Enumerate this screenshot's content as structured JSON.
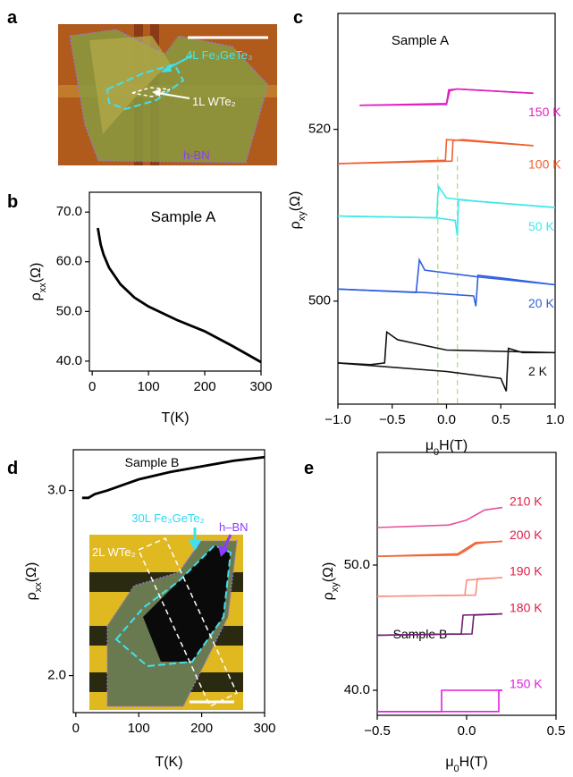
{
  "panel_a": {
    "label": "a",
    "texts": [
      "4L Fe₃GeTe₃",
      "1L WTe₂",
      "h-BN"
    ]
  },
  "chart_data": [
    {
      "panel": "b",
      "type": "line",
      "annotation": "Sample A",
      "xlabel": [
        "T(K)"
      ],
      "ylabel": [
        "ρ",
        "xx",
        "(Ω)"
      ],
      "xlim": [
        -5,
        300
      ],
      "xticks": [
        0,
        100,
        200,
        300
      ],
      "ylim": [
        38,
        74
      ],
      "yticks": [
        {
          "value": 40,
          "label": "40.0"
        },
        {
          "value": 50,
          "label": "50.0"
        },
        {
          "value": 60,
          "label": "60.0"
        },
        {
          "value": 70,
          "label": "70.0"
        }
      ],
      "series": [
        {
          "color": "#000000",
          "x": [
            10,
            15,
            20,
            30,
            50,
            75,
            100,
            150,
            200,
            250,
            300
          ],
          "values": [
            66.8,
            63.5,
            61.5,
            58.8,
            55.5,
            52.8,
            51.0,
            48.3,
            46.0,
            43.0,
            39.8
          ]
        }
      ]
    },
    {
      "panel": "c",
      "type": "line",
      "annotation": "Sample A",
      "xlabel": [
        "μ",
        "0",
        "H(T)"
      ],
      "ylabel": [
        "ρ",
        "xy",
        "(Ω)"
      ],
      "xlim": [
        -1,
        1
      ],
      "xticks": [
        {
          "value": -1,
          "label": "−1.0"
        },
        {
          "value": -0.5,
          "label": "−0.5"
        },
        {
          "value": 0,
          "label": "0.0"
        },
        0.5,
        {
          "value": 1,
          "label": "1.0"
        }
      ],
      "ylim": [
        488,
        533.5
      ],
      "yticks": [
        500,
        520
      ],
      "vlines": [
        -0.08,
        0.1
      ],
      "vline_color": "#b0e080",
      "series": [
        {
          "name": "150 K",
          "color": "#e020c0",
          "branches": [
            {
              "x": [
                -0.8,
                0.0,
                0.03,
                0.1,
                0.8
              ],
              "values": [
                522.8,
                522.9,
                524.5,
                524.7,
                524.2
              ]
            },
            {
              "x": [
                0.8,
                0.1,
                0.02,
                0.0,
                -0.8
              ],
              "values": [
                524.2,
                524.7,
                524.6,
                523.0,
                522.8
              ]
            }
          ]
        },
        {
          "name": "100 K",
          "color": "#f06030",
          "branches": [
            {
              "x": [
                -1.0,
                0.05,
                0.06,
                0.15,
                0.8
              ],
              "values": [
                516.0,
                516.3,
                518.7,
                518.8,
                518.1
              ]
            },
            {
              "x": [
                0.8,
                0.15,
                0.0,
                -0.01,
                -1.0
              ],
              "values": [
                518.1,
                518.7,
                518.8,
                516.4,
                516.0
              ]
            }
          ]
        },
        {
          "name": "50 K",
          "color": "#40e8e8",
          "branches": [
            {
              "x": [
                -1.0,
                -0.1,
                0.08,
                0.1,
                0.11,
                0.3,
                1.0
              ],
              "values": [
                509.9,
                509.7,
                509.4,
                507.6,
                511.8,
                511.6,
                510.9
              ]
            },
            {
              "x": [
                1.0,
                0.3,
                0.0,
                -0.07,
                -0.08,
                -0.09,
                -1.0
              ],
              "values": [
                510.9,
                511.6,
                512.0,
                513.3,
                512.4,
                509.7,
                509.9
              ]
            }
          ]
        },
        {
          "name": "20 K",
          "color": "#3060e0",
          "branches": [
            {
              "x": [
                -1.0,
                -0.2,
                0.25,
                0.27,
                0.29,
                0.5,
                1.0
              ],
              "values": [
                501.4,
                501.0,
                500.6,
                499.4,
                503.0,
                502.7,
                501.9
              ]
            },
            {
              "x": [
                1.0,
                0.3,
                -0.2,
                -0.25,
                -0.26,
                -0.28,
                -1.0
              ],
              "values": [
                501.9,
                502.8,
                503.6,
                504.8,
                503.5,
                501.0,
                501.4
              ]
            }
          ]
        },
        {
          "name": "2 K",
          "color": "#111111",
          "branches": [
            {
              "x": [
                -1.0,
                0.0,
                0.5,
                0.55,
                0.57,
                0.7,
                1.0
              ],
              "values": [
                492.8,
                491.8,
                491.0,
                489.5,
                494.5,
                494.0,
                494.0
              ]
            },
            {
              "x": [
                1.0,
                0.0,
                -0.45,
                -0.55,
                -0.57,
                -0.7,
                -1.0
              ],
              "values": [
                494.0,
                494.3,
                495.5,
                496.4,
                492.8,
                492.6,
                492.8
              ]
            }
          ]
        }
      ]
    },
    {
      "panel": "d",
      "type": "line",
      "annotation": "Sample B",
      "xlabel": [
        "T(K)"
      ],
      "ylabel": [
        "ρ",
        "xx",
        "(Ω)"
      ],
      "xlim": [
        -4,
        300
      ],
      "xticks": [
        0,
        100,
        200,
        300
      ],
      "ylim": [
        1.8,
        3.22
      ],
      "yticks": [
        {
          "value": 2,
          "label": "2.0"
        },
        {
          "value": 3,
          "label": "3.0"
        }
      ],
      "inset_labels": [
        "30L Fe₃GeTe₂",
        "h–BN",
        "2L WTe₂"
      ],
      "series": [
        {
          "color": "#000000",
          "x": [
            10,
            20,
            30,
            50,
            75,
            100,
            150,
            200,
            250,
            300
          ],
          "values": [
            2.96,
            2.96,
            2.98,
            3.0,
            3.03,
            3.06,
            3.1,
            3.13,
            3.16,
            3.18
          ]
        }
      ]
    },
    {
      "panel": "e",
      "type": "line",
      "annotation": "Sample B",
      "xlabel": [
        "μ",
        "0",
        "H(T)"
      ],
      "ylabel": [
        "ρ",
        "xy",
        "(Ω)"
      ],
      "xlim": [
        -0.5,
        0.5
      ],
      "xticks": [
        {
          "value": -0.5,
          "label": "−0.5"
        },
        {
          "value": 0,
          "label": "0.0"
        },
        0.5
      ],
      "ylim": [
        38,
        59
      ],
      "yticks": [
        {
          "value": 40,
          "label": "40.0"
        },
        {
          "value": 50,
          "label": "50.0"
        }
      ],
      "series": [
        {
          "name": "210 K",
          "color": "#e8509a",
          "label_color": "#e0204a",
          "branches": [
            {
              "x": [
                -0.5,
                -0.1,
                0.0,
                0.05,
                0.1,
                0.2
              ],
              "values": [
                53.0,
                53.2,
                53.6,
                54.0,
                54.4,
                54.6
              ]
            }
          ]
        },
        {
          "name": "200 K",
          "color": "#f06838",
          "label_color": "#e0204a",
          "branches": [
            {
              "x": [
                -0.5,
                -0.05,
                0.0,
                0.05,
                0.1,
                0.2
              ],
              "values": [
                50.7,
                50.8,
                51.2,
                51.7,
                51.8,
                51.9
              ]
            },
            {
              "x": [
                0.2,
                0.05,
                -0.05,
                -0.5
              ],
              "values": [
                51.9,
                51.8,
                50.9,
                50.7
              ]
            }
          ]
        },
        {
          "name": "190 K",
          "color": "#f89080",
          "label_color": "#e0204a",
          "branches": [
            {
              "x": [
                -0.5,
                0.05,
                0.06,
                0.2
              ],
              "values": [
                47.5,
                47.6,
                48.9,
                49.0
              ]
            },
            {
              "x": [
                0.2,
                0.0,
                -0.01,
                -0.5
              ],
              "values": [
                49.0,
                48.8,
                47.6,
                47.5
              ]
            }
          ]
        },
        {
          "name": "180 K",
          "color": "#702070",
          "label_color": "#e0204a",
          "branches": [
            {
              "x": [
                -0.5,
                0.03,
                0.04,
                0.2
              ],
              "values": [
                44.4,
                44.5,
                46.0,
                46.1
              ]
            },
            {
              "x": [
                0.2,
                -0.02,
                -0.03,
                -0.5
              ],
              "values": [
                46.1,
                46.0,
                44.5,
                44.4
              ]
            }
          ]
        },
        {
          "name": "150 K",
          "color": "#e020e0",
          "label_color": "#e020e0",
          "branches": [
            {
              "x": [
                -0.5,
                0.18,
                0.18,
                0.2
              ],
              "values": [
                38.3,
                38.3,
                40.0,
                40.0
              ]
            },
            {
              "x": [
                0.2,
                -0.14,
                -0.14,
                -0.5
              ],
              "values": [
                40.0,
                40.0,
                38.3,
                38.3
              ]
            }
          ]
        }
      ]
    }
  ]
}
